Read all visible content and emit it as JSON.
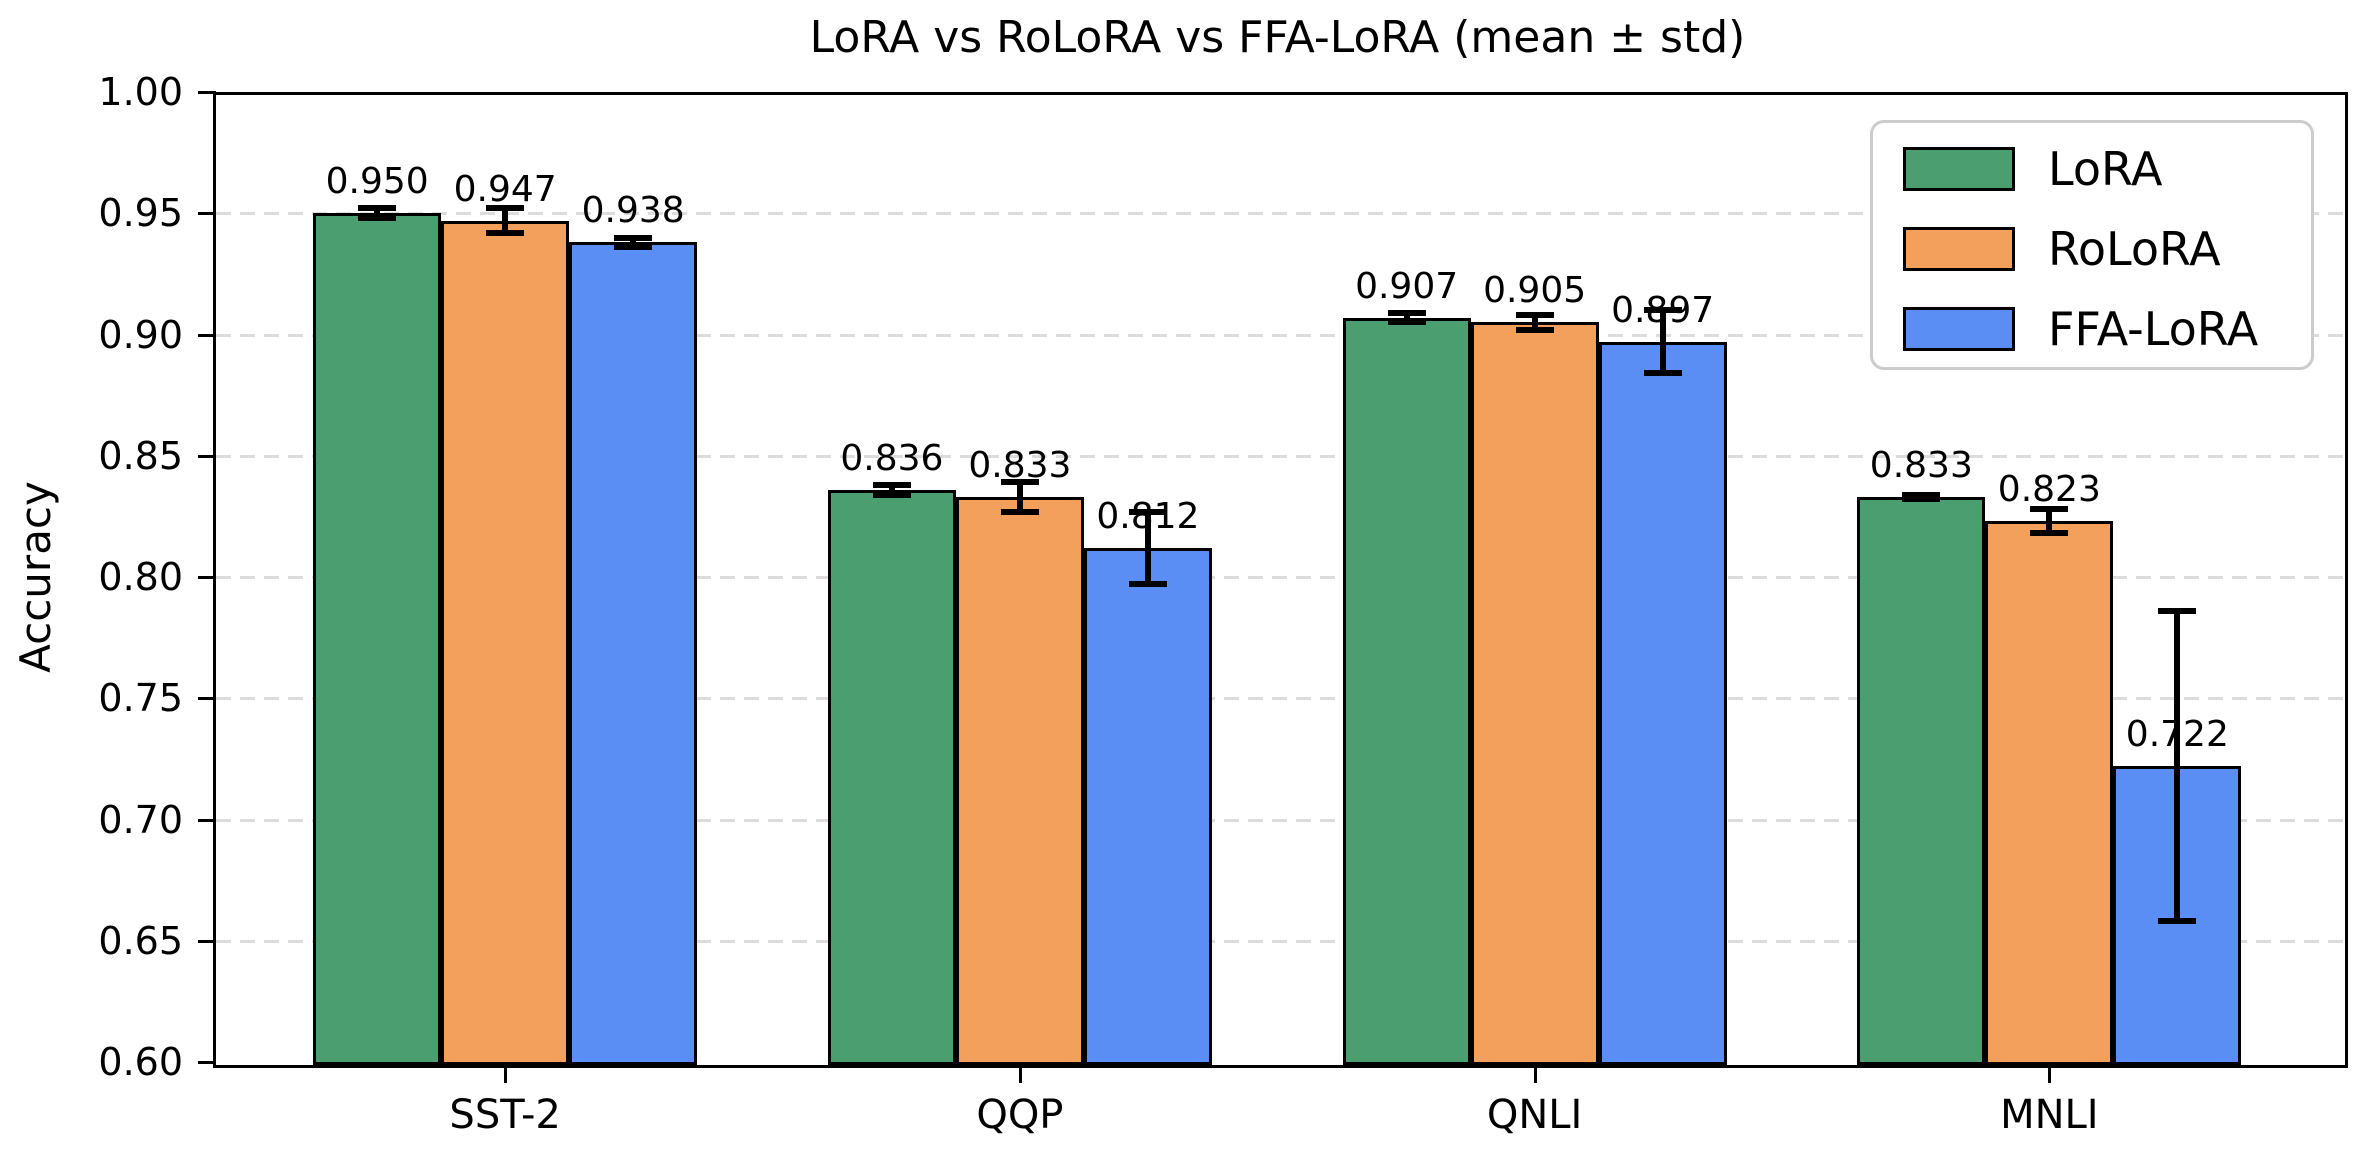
{
  "figure": {
    "kind": "matplotlib-style grouped bar chart screenshot"
  },
  "chart_data": {
    "type": "bar",
    "title": "LoRA vs RoLoRA vs FFA-LoRA (mean ± std)",
    "xlabel": "",
    "ylabel": "Accuracy",
    "categories": [
      "SST-2",
      "QQP",
      "QNLI",
      "MNLI"
    ],
    "series": [
      {
        "name": "LoRA",
        "color": "#4a9e70",
        "values": [
          0.95,
          0.836,
          0.907,
          0.833
        ],
        "std": [
          0.002,
          0.002,
          0.002,
          0.001
        ]
      },
      {
        "name": "RoLoRA",
        "color": "#f2a05c",
        "values": [
          0.947,
          0.833,
          0.905,
          0.823
        ],
        "std": [
          0.005,
          0.006,
          0.003,
          0.005
        ]
      },
      {
        "name": "FFA-LoRA",
        "color": "#5a8ef5",
        "values": [
          0.938,
          0.812,
          0.897,
          0.722
        ],
        "std": [
          0.002,
          0.015,
          0.013,
          0.064
        ]
      }
    ],
    "value_labels": [
      [
        "0.950",
        "0.836",
        "0.907",
        "0.833"
      ],
      [
        "0.947",
        "0.833",
        "0.905",
        "0.823"
      ],
      [
        "0.938",
        "0.812",
        "0.897",
        "0.722"
      ]
    ],
    "ylim": [
      0.6,
      1.0
    ],
    "ytick_labels": [
      "0.60",
      "0.65",
      "0.70",
      "0.75",
      "0.80",
      "0.85",
      "0.90",
      "0.95",
      "1.00"
    ],
    "grid": "horizontal dashed gridlines at y ticks",
    "gridline_color": "#dcdcdc",
    "bar_edge_color": "#000000",
    "errorbar_color": "#000000",
    "legend": {
      "position": "upper right",
      "entries": [
        "LoRA",
        "RoLoRA",
        "FFA-LoRA"
      ]
    }
  }
}
